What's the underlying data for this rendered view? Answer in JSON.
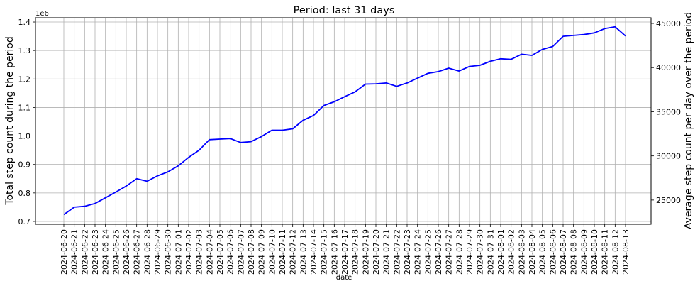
{
  "chart_data": {
    "type": "line",
    "title": "Period: last 31 days",
    "xlabel": "date",
    "ylabel": "Total step count during the period",
    "ylabel_right": "Average step count per day over the period",
    "y_offset_text": "1e6",
    "x": [
      "2024-06-20",
      "2024-06-21",
      "2024-06-22",
      "2024-06-23",
      "2024-06-24",
      "2024-06-25",
      "2024-06-26",
      "2024-06-27",
      "2024-06-28",
      "2024-06-29",
      "2024-06-30",
      "2024-07-01",
      "2024-07-02",
      "2024-07-03",
      "2024-07-04",
      "2024-07-05",
      "2024-07-06",
      "2024-07-07",
      "2024-07-08",
      "2024-07-09",
      "2024-07-10",
      "2024-07-11",
      "2024-07-12",
      "2024-07-13",
      "2024-07-14",
      "2024-07-15",
      "2024-07-16",
      "2024-07-17",
      "2024-07-18",
      "2024-07-19",
      "2024-07-20",
      "2024-07-21",
      "2024-07-22",
      "2024-07-23",
      "2024-07-24",
      "2024-07-25",
      "2024-07-26",
      "2024-07-27",
      "2024-07-28",
      "2024-07-29",
      "2024-07-30",
      "2024-07-31",
      "2024-08-01",
      "2024-08-02",
      "2024-08-03",
      "2024-08-04",
      "2024-08-05",
      "2024-08-06",
      "2024-08-07",
      "2024-08-08",
      "2024-08-09",
      "2024-08-10",
      "2024-08-11",
      "2024-08-12",
      "2024-08-13"
    ],
    "series": [
      {
        "color": "#0000ff",
        "values": [
          724000,
          750000,
          753000,
          763000,
          783000,
          803000,
          824000,
          850000,
          841000,
          860000,
          874000,
          895000,
          925000,
          950000,
          987000,
          989000,
          991000,
          977000,
          980000,
          998000,
          1020000,
          1020000,
          1025000,
          1055000,
          1072000,
          1107000,
          1120000,
          1138000,
          1155000,
          1182000,
          1183000,
          1186000,
          1174000,
          1186000,
          1203000,
          1220000,
          1226000,
          1238000,
          1228000,
          1244000,
          1248000,
          1262000,
          1271000,
          1269000,
          1287000,
          1283000,
          1304000,
          1314000,
          1350000,
          1353000,
          1356000,
          1362000,
          1377000,
          1383000,
          1351000
        ]
      }
    ],
    "ylim": [
      690000,
      1415000
    ],
    "yticks": [
      0.7,
      0.8,
      0.9,
      1.0,
      1.1,
      1.2,
      1.3,
      1.4
    ],
    "yticks_right": [
      25000,
      30000,
      35000,
      40000,
      45000
    ],
    "ylim_right": [
      22258,
      45645
    ],
    "grid": true
  }
}
